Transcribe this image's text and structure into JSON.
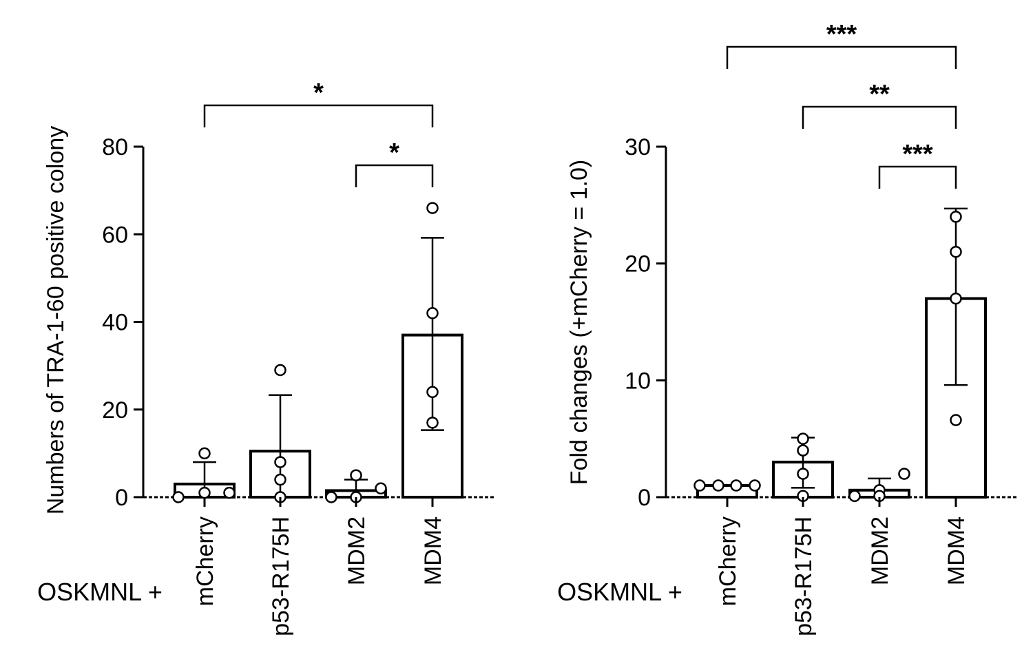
{
  "x_prefix": "OSKMNL +",
  "chart_data": [
    {
      "type": "bar",
      "categories": [
        "mCherry",
        "p53-R175H",
        "MDM2",
        "MDM4"
      ],
      "values": [
        3,
        10.5,
        1.5,
        37
      ],
      "error_bars": [
        [
          0,
          8
        ],
        [
          0,
          23.3
        ],
        [
          0,
          4
        ],
        [
          15.3,
          59.2
        ]
      ],
      "points": [
        [
          0,
          10,
          1,
          1
        ],
        [
          0,
          4,
          8,
          29
        ],
        [
          0,
          5,
          2,
          0
        ],
        [
          17,
          24,
          42,
          66
        ]
      ],
      "xlabel": "",
      "ylabel": "Numbers of TRA-1-60 positive colony",
      "ylim": [
        0,
        80
      ],
      "yticks": [
        0,
        20,
        40,
        60,
        80
      ],
      "significance": [
        {
          "from": "mCherry",
          "to": "MDM4",
          "label": "*"
        },
        {
          "from": "MDM2",
          "to": "MDM4",
          "label": "*"
        }
      ],
      "grid": false
    },
    {
      "type": "bar",
      "categories": [
        "mCherry",
        "p53-R175H",
        "MDM2",
        "MDM4"
      ],
      "values": [
        1,
        3,
        0.6,
        17
      ],
      "error_bars": [
        [
          1,
          1
        ],
        [
          0.8,
          5.1
        ],
        [
          0,
          1.6
        ],
        [
          9.6,
          24.7
        ]
      ],
      "points": [
        [
          1,
          1,
          1,
          1
        ],
        [
          0.1,
          2,
          4,
          5
        ],
        [
          0.1,
          0.6,
          2,
          0.1
        ],
        [
          6.6,
          17,
          21,
          24
        ]
      ],
      "xlabel": "",
      "ylabel": "Fold changes (+mCherry = 1.0)",
      "ylim": [
        0,
        30
      ],
      "yticks": [
        0,
        10,
        20,
        30
      ],
      "significance": [
        {
          "from": "mCherry",
          "to": "MDM4",
          "label": "***"
        },
        {
          "from": "p53-R175H",
          "to": "MDM4",
          "label": "**"
        },
        {
          "from": "MDM2",
          "to": "MDM4",
          "label": "***"
        }
      ],
      "grid": false
    }
  ]
}
